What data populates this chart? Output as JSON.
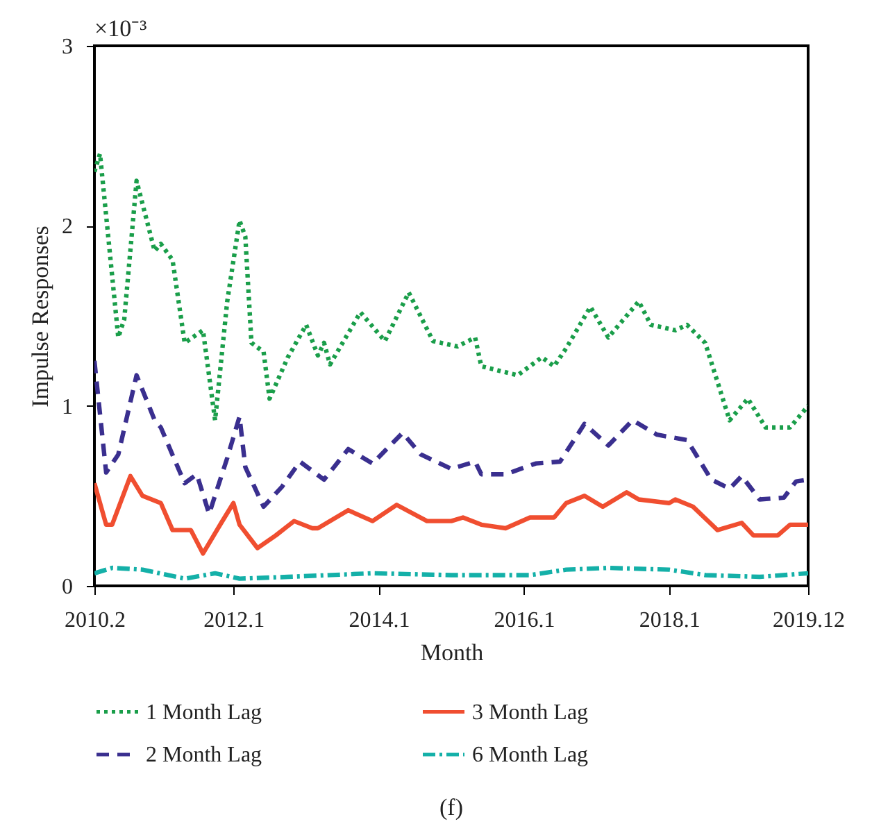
{
  "chart_data": {
    "type": "line",
    "xlabel": "Month",
    "ylabel": "Impulse Responses",
    "annotations": [
      "×10⁻³",
      "(f)"
    ],
    "xlim": [
      "2010-02",
      "2019-12"
    ],
    "xticks": [
      {
        "value": "2010-02",
        "label": "2010.2"
      },
      {
        "value": "2012-01",
        "label": "2012.1"
      },
      {
        "value": "2014-01",
        "label": "2014.1"
      },
      {
        "value": "2016-01",
        "label": "2016.1"
      },
      {
        "value": "2018-01",
        "label": "2018.1"
      },
      {
        "value": "2019-12",
        "label": "2019.12"
      }
    ],
    "ylim": [
      0,
      3
    ],
    "yticks": [
      0,
      1,
      2,
      3
    ],
    "grid": false,
    "legend": "bottom",
    "marker": "none",
    "series": [
      {
        "name": "1 Month Lag",
        "color": "#1a9e4a",
        "line_style": "dotted",
        "x": [
          "2010-02",
          "2010-03",
          "2010-06",
          "2010-07",
          "2010-09",
          "2010-12",
          "2011-01",
          "2011-03",
          "2011-05",
          "2011-08",
          "2011-10",
          "2011-12",
          "2012-02",
          "2012-03",
          "2012-04",
          "2012-06",
          "2012-07",
          "2012-10",
          "2013-01",
          "2013-03",
          "2013-04",
          "2013-05",
          "2013-10",
          "2014-02",
          "2014-06",
          "2014-10",
          "2015-02",
          "2015-05",
          "2015-06",
          "2015-12",
          "2016-04",
          "2016-06",
          "2016-08",
          "2016-12",
          "2017-03",
          "2017-08",
          "2017-10",
          "2018-02",
          "2018-04",
          "2018-07",
          "2018-11",
          "2019-02",
          "2019-05",
          "2019-09",
          "2019-12"
        ],
        "values": [
          2.3,
          2.4,
          1.38,
          1.48,
          2.25,
          1.86,
          1.9,
          1.81,
          1.35,
          1.42,
          0.92,
          1.58,
          2.03,
          1.94,
          1.35,
          1.3,
          1.04,
          1.27,
          1.45,
          1.28,
          1.35,
          1.23,
          1.52,
          1.36,
          1.63,
          1.36,
          1.33,
          1.38,
          1.22,
          1.17,
          1.27,
          1.22,
          1.32,
          1.55,
          1.38,
          1.58,
          1.45,
          1.42,
          1.45,
          1.35,
          0.92,
          1.04,
          0.88,
          0.88,
          1.0
        ]
      },
      {
        "name": "2 Month Lag",
        "color": "#3a2f8f",
        "line_style": "dashed",
        "x": [
          "2010-02",
          "2010-04",
          "2010-06",
          "2010-09",
          "2010-12",
          "2011-01",
          "2011-05",
          "2011-07",
          "2011-09",
          "2011-12",
          "2012-02",
          "2012-03",
          "2012-06",
          "2012-09",
          "2012-12",
          "2013-04",
          "2013-08",
          "2013-12",
          "2014-05",
          "2014-08",
          "2015-01",
          "2015-05",
          "2015-06",
          "2015-10",
          "2016-03",
          "2016-07",
          "2016-11",
          "2017-03",
          "2017-07",
          "2017-11",
          "2018-04",
          "2018-08",
          "2018-11",
          "2019-01",
          "2019-04",
          "2019-08",
          "2019-10",
          "2019-12"
        ],
        "values": [
          1.25,
          0.63,
          0.73,
          1.17,
          0.92,
          0.88,
          0.57,
          0.62,
          0.4,
          0.71,
          0.94,
          0.66,
          0.44,
          0.55,
          0.69,
          0.59,
          0.76,
          0.68,
          0.85,
          0.73,
          0.65,
          0.69,
          0.62,
          0.62,
          0.68,
          0.69,
          0.9,
          0.78,
          0.92,
          0.84,
          0.81,
          0.59,
          0.54,
          0.61,
          0.48,
          0.49,
          0.58,
          0.59
        ]
      },
      {
        "name": "3 Month Lag",
        "color": "#f04e30",
        "line_style": "solid",
        "x": [
          "2010-02",
          "2010-04",
          "2010-05",
          "2010-08",
          "2010-10",
          "2011-01",
          "2011-03",
          "2011-06",
          "2011-08",
          "2011-11",
          "2012-01",
          "2012-02",
          "2012-05",
          "2012-08",
          "2012-11",
          "2013-02",
          "2013-03",
          "2013-08",
          "2013-12",
          "2014-04",
          "2014-09",
          "2015-01",
          "2015-03",
          "2015-06",
          "2015-10",
          "2016-02",
          "2016-06",
          "2016-08",
          "2016-11",
          "2017-02",
          "2017-06",
          "2017-08",
          "2018-01",
          "2018-02",
          "2018-05",
          "2018-09",
          "2019-01",
          "2019-03",
          "2019-07",
          "2019-09",
          "2019-12"
        ],
        "values": [
          0.57,
          0.34,
          0.34,
          0.61,
          0.5,
          0.46,
          0.31,
          0.31,
          0.18,
          0.35,
          0.46,
          0.34,
          0.21,
          0.28,
          0.36,
          0.32,
          0.32,
          0.42,
          0.36,
          0.45,
          0.36,
          0.36,
          0.38,
          0.34,
          0.32,
          0.38,
          0.38,
          0.46,
          0.5,
          0.44,
          0.52,
          0.48,
          0.46,
          0.48,
          0.44,
          0.31,
          0.35,
          0.28,
          0.28,
          0.34,
          0.34
        ]
      },
      {
        "name": "6 Month Lag",
        "color": "#14b0a8",
        "line_style": "dashdot",
        "x": [
          "2010-02",
          "2010-05",
          "2010-10",
          "2011-05",
          "2011-10",
          "2012-02",
          "2012-10",
          "2013-12",
          "2015-01",
          "2015-06",
          "2016-02",
          "2016-08",
          "2017-03",
          "2018-01",
          "2018-07",
          "2019-04",
          "2019-12"
        ],
        "values": [
          0.07,
          0.1,
          0.09,
          0.04,
          0.07,
          0.04,
          0.05,
          0.07,
          0.06,
          0.06,
          0.06,
          0.09,
          0.1,
          0.09,
          0.06,
          0.05,
          0.07
        ]
      }
    ]
  }
}
